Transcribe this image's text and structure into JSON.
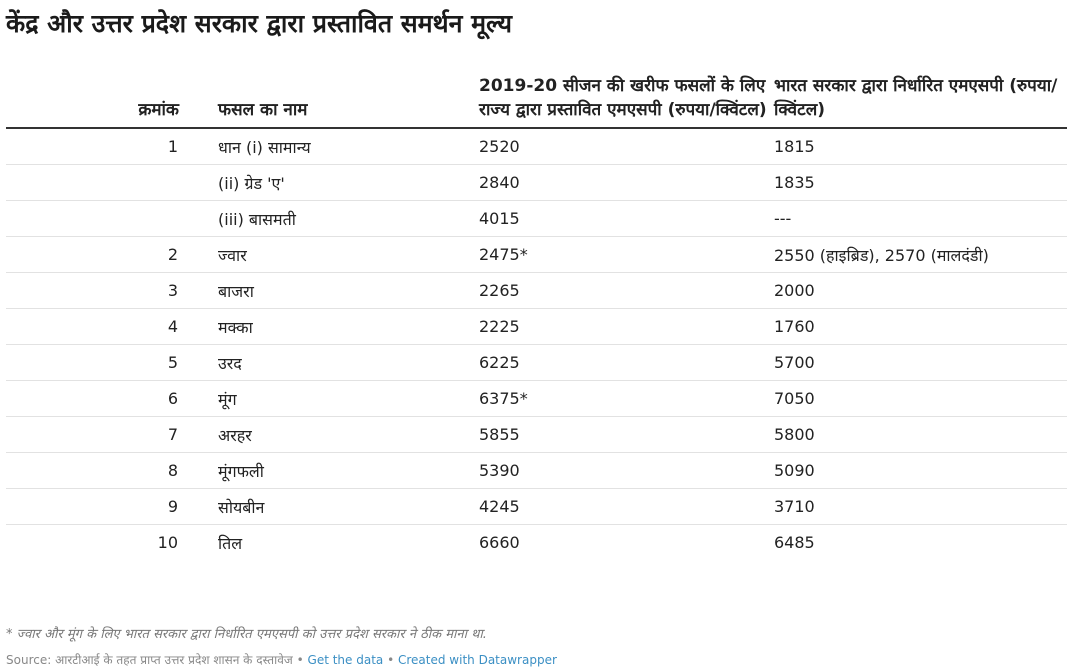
{
  "title": "केंद्र और उत्तर प्रदेश सरकार द्वारा प्रस्तावित समर्थन मूल्य",
  "chart_data": {
    "type": "table",
    "columns": [
      "क्रमांक",
      "फसल का नाम",
      "2019-20 सीजन की खरीफ फसलों के लिए राज्य द्वारा प्रस्तावित एमएसपी (रुपया/क्विंटल)",
      "भारत सरकार द्वारा निर्धारित एमएसपी (रुपया/क्विंटल)"
    ],
    "rows": [
      [
        "1",
        "धान (i) सामान्य",
        "2520",
        "1815"
      ],
      [
        "",
        "(ii) ग्रेड 'ए'",
        "2840",
        "1835"
      ],
      [
        "",
        "(iii) बासमती",
        "4015",
        "---"
      ],
      [
        "2",
        "ज्वार",
        "2475*",
        "2550 (हाइब्रिड), 2570 (मालदंडी)"
      ],
      [
        "3",
        "बाजरा",
        "2265",
        "2000"
      ],
      [
        "4",
        "मक्का",
        "2225",
        "1760"
      ],
      [
        "5",
        "उरद",
        "6225",
        "5700"
      ],
      [
        "6",
        "मूंग",
        "6375*",
        "7050"
      ],
      [
        "7",
        "अरहर",
        "5855",
        "5800"
      ],
      [
        "8",
        "मूंगफली",
        "5390",
        "5090"
      ],
      [
        "9",
        "सोयबीन",
        "4245",
        "3710"
      ],
      [
        "10",
        "तिल",
        "6660",
        "6485"
      ]
    ]
  },
  "footnote": "* ज्वार और मूंग के लिए भारत सरकार द्वारा निर्धारित एमएसपी को उत्तर प्रदेश सरकार ने ठीक माना था.",
  "source": {
    "text": "Source: आरटीआई के तहत प्राप्त उत्तर प्रदेश शासन के दस्तावेज",
    "separator": "•",
    "get_data_label": "Get the data",
    "credit_label": "Created with Datawrapper"
  },
  "colors": {
    "text": "#222222",
    "header_rule": "#333333",
    "row_rule": "#e2e2e2",
    "link": "#3b8fc4",
    "muted": "#888888"
  }
}
